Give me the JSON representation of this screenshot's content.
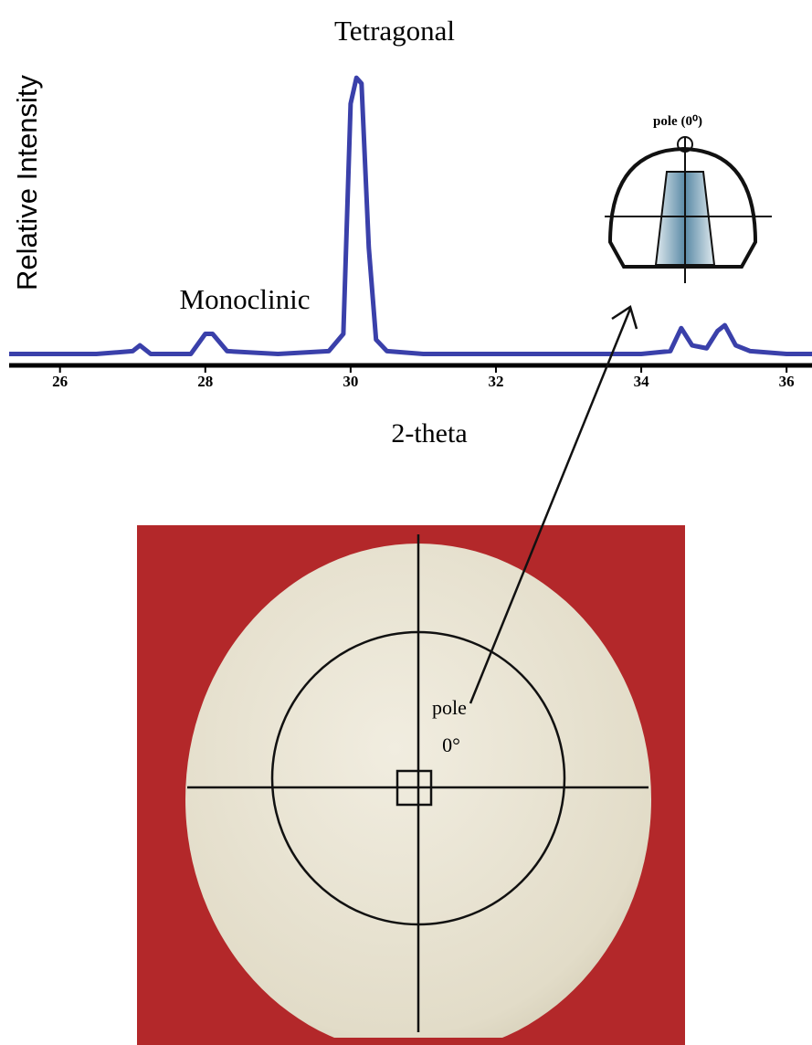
{
  "chart_data": {
    "type": "line",
    "x_label": "2-theta",
    "y_label": "Relative Intensity",
    "annotations": [
      "Tetragonal",
      "Monoclinic",
      "pole (0⁰)",
      "pole",
      "0°"
    ],
    "x": [
      25.3,
      26,
      26.5,
      27.0,
      27.1,
      27.25,
      27.8,
      28.0,
      28.1,
      28.3,
      29.0,
      29.7,
      29.9,
      30.0,
      30.08,
      30.15,
      30.25,
      30.35,
      30.5,
      31,
      32,
      33,
      34,
      34.4,
      34.55,
      34.7,
      34.9,
      35.05,
      35.15,
      35.3,
      35.5,
      36,
      36.35
    ],
    "series": [
      {
        "name": "Relative Intensity",
        "color": "#3a40aa",
        "values": [
          3,
          3,
          3,
          4,
          6,
          3,
          3,
          10,
          10,
          4,
          3,
          4,
          10,
          90,
          99,
          97,
          40,
          8,
          4,
          3,
          3,
          3,
          3,
          4,
          12,
          6,
          5,
          11,
          13,
          6,
          4,
          3,
          3
        ]
      }
    ],
    "xlim": [
      25.3,
      36.35
    ],
    "ylim": [
      0,
      100
    ],
    "xticks": [
      26,
      28,
      30,
      32,
      34,
      36
    ]
  }
}
